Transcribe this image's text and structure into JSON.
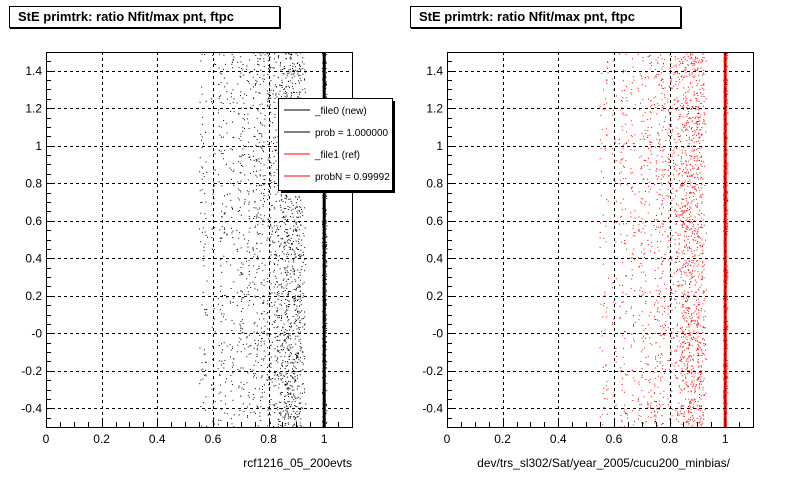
{
  "panels": [
    {
      "title": "StE primtrk: ratio Nfit/max pnt, ftpc",
      "xlabel": "rcf1216_05_200evts"
    },
    {
      "title": "StE primtrk: ratio Nfit/max pnt, ftpc",
      "xlabel": "dev/trs_sl302/Sat/year_2005/cucu200_minbias/"
    }
  ],
  "legend": {
    "entries": [
      {
        "label": "_file0 (new)",
        "color": "#000000"
      },
      {
        "label": "prob = 1.000000",
        "color": "#000000"
      },
      {
        "label": "_file1 (ref)",
        "color": "#ff0000"
      },
      {
        "label": "probN = 0.99992",
        "color": "#ff0000"
      }
    ]
  },
  "chart_data": [
    {
      "type": "scatter",
      "title": "StE primtrk: ratio Nfit/max pnt, ftpc",
      "xlabel": "rcf1216_05_200evts",
      "ylabel": "",
      "xlim": [
        0,
        1.1
      ],
      "ylim": [
        -0.5,
        1.5
      ],
      "x_ticks": [
        "0",
        "0.2",
        "0.4",
        "0.6",
        "0.8",
        "1"
      ],
      "y_ticks": [
        "-0.4",
        "-0.2",
        "-0",
        "0.2",
        "0.4",
        "0.6",
        "0.8",
        "1",
        "1.2",
        "1.4"
      ],
      "grid": true,
      "series": [
        {
          "name": "_file0 (new)",
          "color": "#000000",
          "bands": [
            {
              "x": 0.556,
              "density": 0.25
            },
            {
              "x": 0.571,
              "density": 0.3
            },
            {
              "x": 0.6,
              "density": 0.3
            },
            {
              "x": 0.625,
              "density": 0.45
            },
            {
              "x": 0.643,
              "density": 0.35
            },
            {
              "x": 0.667,
              "density": 0.5
            },
            {
              "x": 0.692,
              "density": 0.4
            },
            {
              "x": 0.706,
              "density": 0.5
            },
            {
              "x": 0.727,
              "density": 0.55
            },
            {
              "x": 0.75,
              "density": 0.65
            },
            {
              "x": 0.765,
              "density": 0.55
            },
            {
              "x": 0.778,
              "density": 0.6
            },
            {
              "x": 0.8,
              "density": 0.8
            },
            {
              "x": 0.818,
              "density": 0.7
            },
            {
              "x": 0.833,
              "density": 0.85
            },
            {
              "x": 0.846,
              "density": 0.8
            },
            {
              "x": 0.857,
              "density": 0.95
            },
            {
              "x": 0.867,
              "density": 0.9
            },
            {
              "x": 0.875,
              "density": 1.0
            },
            {
              "x": 0.889,
              "density": 1.0
            },
            {
              "x": 0.9,
              "density": 1.0
            },
            {
              "x": 0.909,
              "density": 0.95
            },
            {
              "x": 0.917,
              "density": 0.8
            },
            {
              "x": 1.0,
              "density": 3.0
            }
          ]
        }
      ]
    },
    {
      "type": "scatter",
      "title": "StE primtrk: ratio Nfit/max pnt, ftpc",
      "xlabel": "dev/trs_sl302/Sat/year_2005/cucu200_minbias/",
      "ylabel": "",
      "xlim": [
        0,
        1.1
      ],
      "ylim": [
        -0.5,
        1.5
      ],
      "x_ticks": [
        "0",
        "0.2",
        "0.4",
        "0.6",
        "0.8",
        "1"
      ],
      "y_ticks": [
        "-0.4",
        "-0.2",
        "-0",
        "0.2",
        "0.4",
        "0.6",
        "0.8",
        "1",
        "1.2",
        "1.4"
      ],
      "grid": true,
      "series": [
        {
          "name": "_file1 (ref)",
          "color": "#ff0000",
          "bands": [
            {
              "x": 0.556,
              "density": 0.25
            },
            {
              "x": 0.571,
              "density": 0.3
            },
            {
              "x": 0.6,
              "density": 0.3
            },
            {
              "x": 0.625,
              "density": 0.45
            },
            {
              "x": 0.643,
              "density": 0.35
            },
            {
              "x": 0.667,
              "density": 0.5
            },
            {
              "x": 0.692,
              "density": 0.4
            },
            {
              "x": 0.706,
              "density": 0.5
            },
            {
              "x": 0.727,
              "density": 0.55
            },
            {
              "x": 0.75,
              "density": 0.65
            },
            {
              "x": 0.765,
              "density": 0.55
            },
            {
              "x": 0.778,
              "density": 0.6
            },
            {
              "x": 0.8,
              "density": 0.8
            },
            {
              "x": 0.818,
              "density": 0.7
            },
            {
              "x": 0.833,
              "density": 0.85
            },
            {
              "x": 0.846,
              "density": 0.8
            },
            {
              "x": 0.857,
              "density": 0.95
            },
            {
              "x": 0.867,
              "density": 0.9
            },
            {
              "x": 0.875,
              "density": 1.0
            },
            {
              "x": 0.889,
              "density": 1.0
            },
            {
              "x": 0.9,
              "density": 1.0
            },
            {
              "x": 0.909,
              "density": 0.95
            },
            {
              "x": 0.917,
              "density": 0.8
            },
            {
              "x": 1.0,
              "density": 3.0
            }
          ]
        }
      ]
    }
  ]
}
